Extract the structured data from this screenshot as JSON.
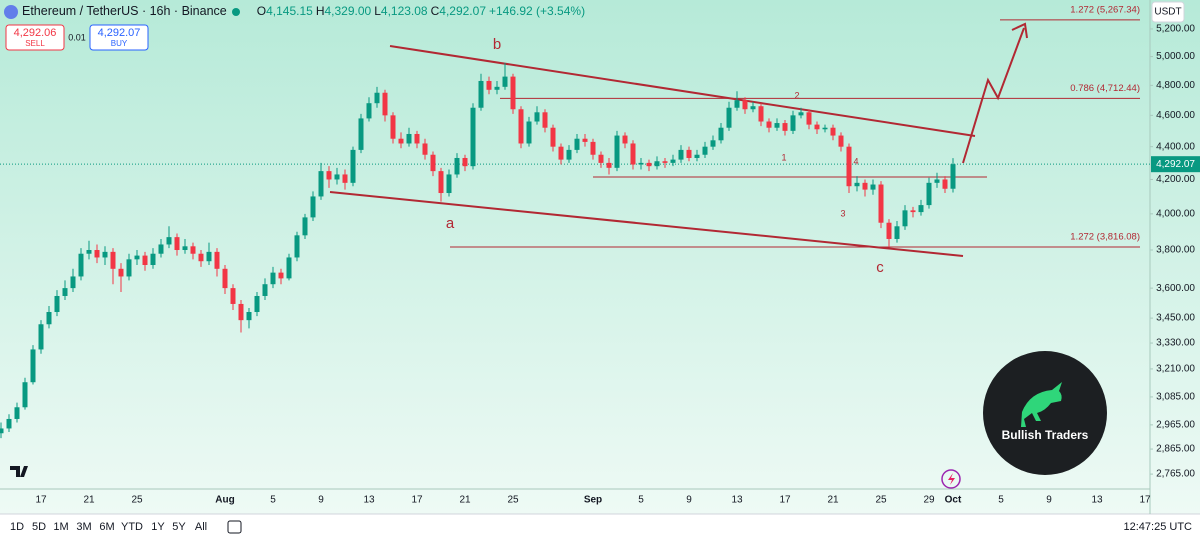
{
  "chart_data": {
    "type": "candlestick",
    "header": {
      "symbol": "Ethereum / TetherUS · 16h · Binance",
      "ohlc": [
        {
          "key": "O",
          "value": "4,145.15"
        },
        {
          "key": "H",
          "value": "4,329.00"
        },
        {
          "key": "L",
          "value": "4,123.08"
        },
        {
          "key": "C",
          "value": "4,292.07"
        }
      ],
      "change": "+146.92 (+3.54%)"
    },
    "trade": {
      "sell_price": "4,292.06",
      "sell": "SELL",
      "spread": "0.01",
      "buy_price": "4,292.07",
      "buy": "BUY"
    },
    "currency": "USDT",
    "categories": [
      null,
      null,
      null,
      null,
      null,
      "17",
      null,
      null,
      null,
      null,
      null,
      "21",
      null,
      null,
      null,
      null,
      null,
      "25",
      null,
      null,
      null,
      null,
      null,
      null,
      null,
      null,
      null,
      null,
      "Aug",
      null,
      null,
      null,
      null,
      null,
      "5",
      null,
      null,
      null,
      null,
      null,
      "9",
      null,
      null,
      null,
      null,
      null,
      "13",
      null,
      null,
      null,
      null,
      null,
      "17",
      null,
      null,
      null,
      null,
      null,
      "21",
      null,
      null,
      null,
      null,
      null,
      "25",
      null,
      null,
      null,
      null,
      null,
      null,
      null,
      null,
      null,
      "Sep",
      null,
      null,
      null,
      null,
      null,
      "5",
      null,
      null,
      null,
      null,
      null,
      "9",
      null,
      null,
      null,
      null,
      null,
      "13",
      null,
      null,
      null,
      null,
      null,
      "17",
      null,
      null,
      null,
      null,
      null,
      "21",
      null,
      null,
      null,
      null,
      null,
      "25",
      null,
      null,
      null,
      null,
      null,
      "29",
      null,
      null,
      "Oct",
      null,
      null,
      null,
      null,
      null,
      "5",
      null,
      null,
      null,
      null,
      null,
      "9",
      null,
      null,
      null,
      null,
      null,
      "13",
      null,
      null,
      null,
      null,
      null,
      "17"
    ],
    "open": [
      2930,
      2950,
      2990,
      3040,
      3150,
      3300,
      3420,
      3480,
      3560,
      3600,
      3660,
      3780,
      3800,
      3760,
      3790,
      3700,
      3660,
      3750,
      3770,
      3720,
      3780,
      3830,
      3870,
      3800,
      3820,
      3780,
      3740,
      3790,
      3700,
      3600,
      3520,
      3440,
      3480,
      3560,
      3620,
      3680,
      3650,
      3760,
      3880,
      3980,
      4100,
      4250,
      4200,
      4230,
      4180,
      4380,
      4580,
      4680,
      4750,
      4600,
      4450,
      4420,
      4480,
      4420,
      4350,
      4250,
      4120,
      4230,
      4330,
      4280,
      4650,
      4830,
      4770,
      4790,
      4860,
      4640,
      4420,
      4560,
      4620,
      4520,
      4400,
      4320,
      4380,
      4450,
      4430,
      4350,
      4300,
      4270,
      4470,
      4420,
      4290,
      4300,
      4280,
      4310,
      4300,
      4320,
      4380,
      4330,
      4350,
      4400,
      4440,
      4520,
      4650,
      4700,
      4640,
      4660,
      4560,
      4520,
      4550,
      4500,
      4600,
      4620,
      4540,
      4510,
      4520,
      4470,
      4400,
      4160,
      4180,
      4140,
      4170,
      3950,
      3860,
      3930,
      4020,
      4010,
      4050,
      4180,
      4200,
      4145.15,
      null,
      null,
      null,
      null,
      null,
      null,
      null,
      null,
      null,
      null,
      null,
      null,
      null,
      null,
      null,
      null,
      null,
      null,
      null,
      null,
      null,
      null,
      null,
      null
    ],
    "high": [
      2975,
      3010,
      3060,
      3170,
      3320,
      3440,
      3510,
      3590,
      3640,
      3700,
      3810,
      3850,
      3830,
      3820,
      3810,
      3730,
      3780,
      3800,
      3790,
      3810,
      3860,
      3930,
      3890,
      3860,
      3840,
      3800,
      3840,
      3810,
      3720,
      3620,
      3540,
      3500,
      3580,
      3650,
      3710,
      3700,
      3780,
      3900,
      4000,
      4130,
      4300,
      4280,
      4270,
      4260,
      4400,
      4610,
      4720,
      4790,
      4770,
      4620,
      4490,
      4520,
      4500,
      4450,
      4370,
      4270,
      4260,
      4360,
      4350,
      4680,
      4880,
      4860,
      4830,
      4955,
      4880,
      4660,
      4590,
      4660,
      4640,
      4540,
      4420,
      4410,
      4480,
      4480,
      4450,
      4370,
      4330,
      4500,
      4490,
      4440,
      4330,
      4320,
      4340,
      4330,
      4350,
      4410,
      4400,
      4380,
      4430,
      4470,
      4550,
      4690,
      4760,
      4720,
      4690,
      4680,
      4580,
      4580,
      4570,
      4630,
      4650,
      4640,
      4560,
      4540,
      4540,
      4490,
      4420,
      4220,
      4200,
      4200,
      4190,
      3970,
      3960,
      4050,
      4040,
      4080,
      4210,
      4240,
      4220,
      4329,
      null,
      null,
      null,
      null,
      null,
      null,
      null,
      null,
      null,
      null,
      null,
      null,
      null,
      null,
      null,
      null,
      null,
      null,
      null,
      null,
      null,
      null,
      null,
      null
    ],
    "low": [
      2910,
      2935,
      2975,
      3030,
      3140,
      3280,
      3400,
      3460,
      3540,
      3580,
      3640,
      3750,
      3730,
      3720,
      3620,
      3580,
      3640,
      3720,
      3690,
      3700,
      3760,
      3810,
      3770,
      3780,
      3750,
      3710,
      3720,
      3660,
      3570,
      3490,
      3380,
      3400,
      3460,
      3540,
      3600,
      3620,
      3640,
      3740,
      3860,
      3960,
      4080,
      4150,
      4170,
      4140,
      4160,
      4360,
      4560,
      4650,
      4560,
      4420,
      4390,
      4400,
      4390,
      4320,
      4220,
      4070,
      4100,
      4210,
      4250,
      4260,
      4630,
      4740,
      4740,
      4770,
      4610,
      4390,
      4400,
      4540,
      4490,
      4370,
      4290,
      4300,
      4360,
      4400,
      4320,
      4270,
      4230,
      4250,
      4390,
      4260,
      4260,
      4250,
      4260,
      4270,
      4280,
      4300,
      4310,
      4310,
      4330,
      4380,
      4420,
      4500,
      4630,
      4610,
      4620,
      4530,
      4490,
      4500,
      4470,
      4480,
      4580,
      4510,
      4480,
      4490,
      4440,
      4370,
      4120,
      4130,
      4100,
      4110,
      3920,
      3816,
      3840,
      3910,
      3980,
      3990,
      4030,
      4150,
      4120,
      4123.08,
      null,
      null,
      null,
      null,
      null,
      null,
      null,
      null,
      null,
      null,
      null,
      null,
      null,
      null,
      null,
      null,
      null,
      null,
      null,
      null,
      null,
      null,
      null,
      null
    ],
    "close": [
      2950,
      2990,
      3040,
      3150,
      3300,
      3420,
      3480,
      3560,
      3600,
      3660,
      3780,
      3800,
      3760,
      3790,
      3700,
      3660,
      3750,
      3770,
      3720,
      3780,
      3830,
      3870,
      3800,
      3820,
      3780,
      3740,
      3790,
      3700,
      3600,
      3520,
      3440,
      3480,
      3560,
      3620,
      3680,
      3650,
      3760,
      3880,
      3980,
      4100,
      4250,
      4200,
      4230,
      4180,
      4380,
      4580,
      4680,
      4750,
      4600,
      4450,
      4420,
      4480,
      4420,
      4350,
      4250,
      4120,
      4230,
      4330,
      4280,
      4650,
      4830,
      4770,
      4790,
      4860,
      4640,
      4420,
      4560,
      4620,
      4520,
      4400,
      4320,
      4380,
      4450,
      4430,
      4350,
      4300,
      4270,
      4470,
      4420,
      4290,
      4300,
      4280,
      4310,
      4300,
      4320,
      4380,
      4330,
      4350,
      4400,
      4440,
      4520,
      4650,
      4700,
      4640,
      4660,
      4560,
      4520,
      4550,
      4500,
      4600,
      4620,
      4540,
      4510,
      4520,
      4470,
      4400,
      4160,
      4180,
      4140,
      4170,
      3950,
      3860,
      3930,
      4020,
      4010,
      4050,
      4180,
      4200,
      4145,
      4292.07,
      null,
      null,
      null,
      null,
      null,
      null,
      null,
      null,
      null,
      null,
      null,
      null,
      null,
      null,
      null,
      null,
      null,
      null,
      null,
      null,
      null,
      null,
      null,
      null
    ],
    "up_color": "#089981",
    "down_color": "#f23645",
    "log_scale": true,
    "ylim": [
      2711,
      5418
    ],
    "yticks": [
      {
        "value": 5200,
        "label": "5,200.00"
      },
      {
        "value": 5000,
        "label": "5,000.00"
      },
      {
        "value": 4800,
        "label": "4,800.00"
      },
      {
        "value": 4600,
        "label": "4,600.00"
      },
      {
        "value": 4400,
        "label": "4,400.00"
      },
      {
        "value": 4200,
        "label": "4,200.00"
      },
      {
        "value": 4000,
        "label": "4,000.00"
      },
      {
        "value": 3800,
        "label": "3,800.00"
      },
      {
        "value": 3600,
        "label": "3,600.00"
      },
      {
        "value": 3450,
        "label": "3,450.00"
      },
      {
        "value": 3330,
        "label": "3,330.00"
      },
      {
        "value": 3210,
        "label": "3,210.00"
      },
      {
        "value": 3085,
        "label": "3,085.00"
      },
      {
        "value": 2965,
        "label": "2,965.00"
      },
      {
        "value": 2865,
        "label": "2,865.00"
      },
      {
        "value": 2765,
        "label": "2,765.00"
      }
    ],
    "grid": false,
    "last_price": {
      "value": 4292.07,
      "label": "4,292.07"
    },
    "fib_levels": [
      {
        "value": 5267.34,
        "label": "1.272 (5,267.34)"
      },
      {
        "value": 4712.44,
        "label": "0.786 (4,712.44)"
      },
      {
        "value": 3816.08,
        "label": "1.272 (3,816.08)"
      }
    ],
    "annotation_color": "#b22833",
    "wave_labels": [
      "a",
      "b",
      "c",
      "1",
      "2",
      "3",
      "4"
    ],
    "logo": "Bullish Traders"
  },
  "toolbar": {
    "periods": [
      "1D",
      "5D",
      "1M",
      "3M",
      "6M",
      "YTD",
      "1Y",
      "5Y",
      "All"
    ],
    "clock": "12:47:25 UTC"
  }
}
